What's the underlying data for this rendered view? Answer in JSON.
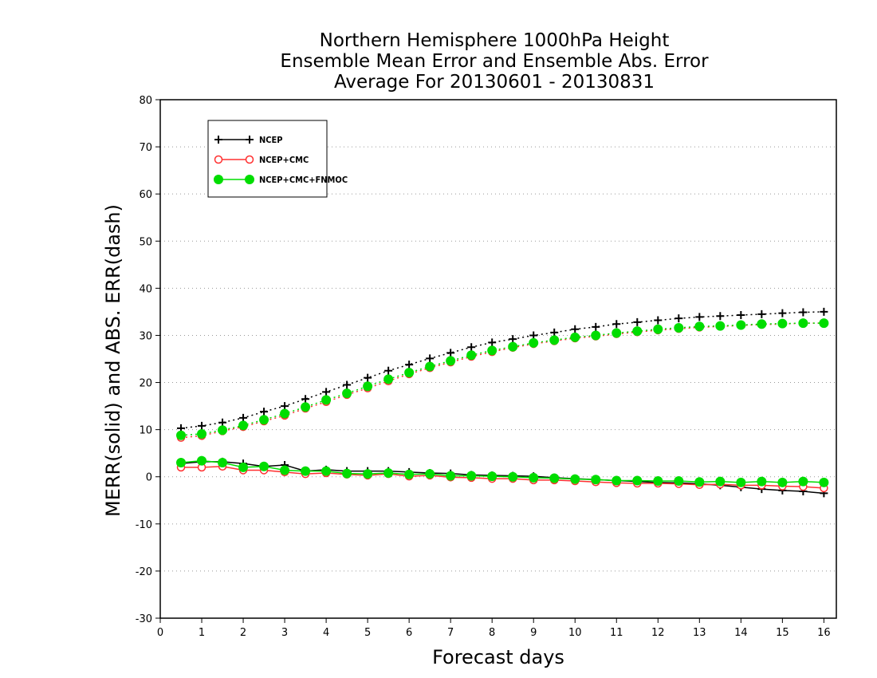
{
  "chart_data": {
    "type": "line",
    "title_lines": [
      "Northern Hemisphere 1000hPa Height",
      "Ensemble Mean Error and Ensemble Abs. Error",
      "Average For 20130601 - 20130831"
    ],
    "xlabel": "Forecast days",
    "ylabel": "MERR(solid) and ABS. ERR(dash)",
    "xlim": [
      0,
      16.3
    ],
    "ylim": [
      -30,
      80
    ],
    "xticks": [
      0,
      1,
      2,
      3,
      4,
      5,
      6,
      7,
      8,
      9,
      10,
      11,
      12,
      13,
      14,
      15,
      16
    ],
    "yticks": [
      -30,
      -20,
      -10,
      0,
      10,
      20,
      30,
      40,
      50,
      60,
      70,
      80
    ],
    "grid": "horizontal dotted",
    "legend_position": "top-left",
    "x": [
      0.5,
      1,
      1.5,
      2,
      2.5,
      3,
      3.5,
      4,
      4.5,
      5,
      5.5,
      6,
      6.5,
      7,
      7.5,
      8,
      8.5,
      9,
      9.5,
      10,
      10.5,
      11,
      11.5,
      12,
      12.5,
      13,
      13.5,
      14,
      14.5,
      15,
      15.5,
      16
    ],
    "series": [
      {
        "name": "NCEP",
        "color": "#000000",
        "marker": "plus",
        "merr": [
          2.8,
          3.2,
          3.2,
          2.8,
          2.2,
          2.5,
          1.2,
          1.5,
          1.2,
          1.2,
          1.2,
          1.0,
          0.8,
          0.7,
          0.4,
          0.3,
          0.2,
          0.1,
          -0.2,
          -0.4,
          -0.6,
          -0.8,
          -1.0,
          -1.2,
          -1.3,
          -1.5,
          -1.8,
          -2.2,
          -2.6,
          -2.9,
          -3.1,
          -3.5
        ],
        "abs_err": [
          10.3,
          10.8,
          11.5,
          12.5,
          13.8,
          15.0,
          16.5,
          18.0,
          19.5,
          21.0,
          22.5,
          23.8,
          25.1,
          26.3,
          27.5,
          28.5,
          29.2,
          30.0,
          30.6,
          31.3,
          31.8,
          32.4,
          32.8,
          33.2,
          33.6,
          33.9,
          34.1,
          34.3,
          34.5,
          34.7,
          34.9,
          35.0
        ]
      },
      {
        "name": "NCEP+CMC",
        "color": "#ff3030",
        "marker": "open-circle",
        "merr": [
          2.0,
          2.0,
          2.2,
          1.4,
          1.4,
          1.0,
          0.6,
          0.8,
          0.5,
          0.3,
          0.6,
          0.1,
          0.3,
          -0.1,
          -0.2,
          -0.4,
          -0.4,
          -0.7,
          -0.7,
          -0.9,
          -1.1,
          -1.3,
          -1.4,
          -1.4,
          -1.5,
          -1.7,
          -1.6,
          -1.8,
          -1.8,
          -2.0,
          -2.1,
          -2.4
        ],
        "abs_err": [
          8.3,
          8.7,
          9.7,
          10.6,
          11.8,
          13.0,
          14.5,
          15.9,
          17.4,
          18.8,
          20.3,
          21.8,
          23.1,
          24.3,
          25.5,
          26.5,
          27.4,
          28.2,
          28.8,
          29.4,
          29.8,
          30.3,
          30.7,
          31.1,
          31.4,
          31.7,
          31.9,
          32.1,
          32.3,
          32.4,
          32.6,
          32.6
        ]
      },
      {
        "name": "NCEP+CMC+FNMOC",
        "color": "#00dd00",
        "marker": "filled-circle",
        "merr": [
          3.0,
          3.4,
          3.0,
          2.0,
          2.2,
          1.4,
          1.2,
          1.2,
          0.7,
          0.6,
          0.8,
          0.5,
          0.6,
          0.2,
          0.2,
          0.1,
          0.0,
          -0.2,
          -0.3,
          -0.5,
          -0.6,
          -0.8,
          -0.8,
          -0.9,
          -0.9,
          -1.1,
          -1.0,
          -1.2,
          -1.0,
          -1.2,
          -1.0,
          -1.2
        ],
        "abs_err": [
          8.8,
          9.1,
          9.9,
          10.9,
          12.1,
          13.4,
          14.8,
          16.3,
          17.7,
          19.2,
          20.7,
          22.1,
          23.4,
          24.6,
          25.8,
          26.8,
          27.6,
          28.4,
          29.0,
          29.6,
          30.0,
          30.5,
          30.9,
          31.3,
          31.6,
          31.9,
          32.0,
          32.2,
          32.4,
          32.5,
          32.6,
          32.6
        ]
      }
    ]
  }
}
